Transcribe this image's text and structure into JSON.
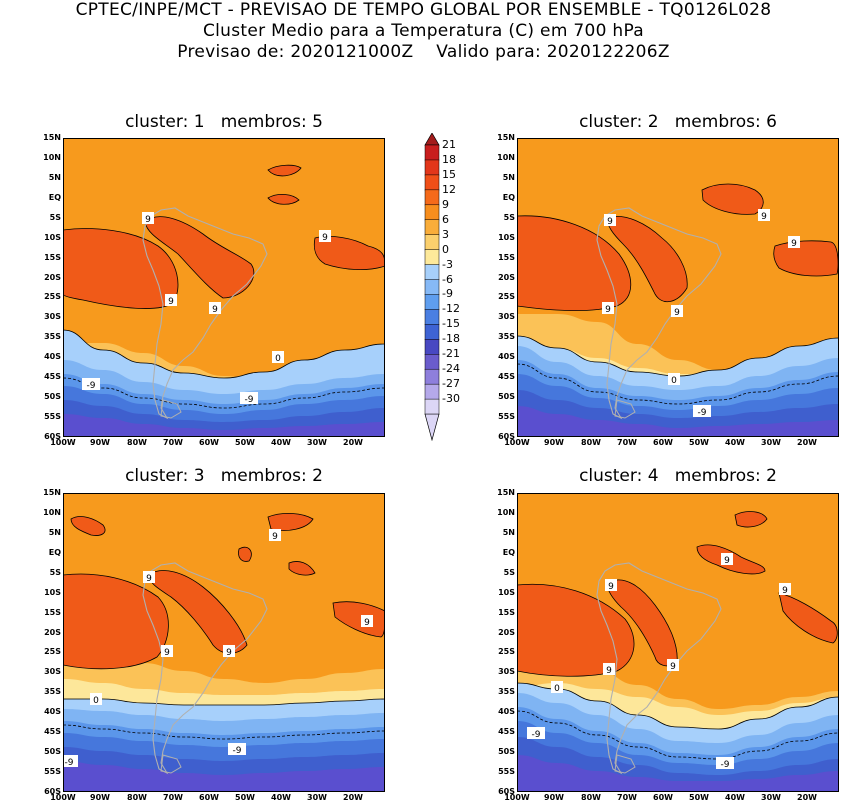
{
  "header": {
    "line1": "CPTEC/INPE/MCT - PREVISAO DE TEMPO GLOBAL POR ENSEMBLE - TQ0126L028",
    "line2": "Cluster Medio para a Temperatura (C) em 700 hPa",
    "line3": "Previsao de: 2020121000Z    Valido para: 2020122206Z"
  },
  "panels": [
    {
      "title": "cluster: 1   membros: 5"
    },
    {
      "title": "cluster: 2   membros: 6"
    },
    {
      "title": "cluster: 3   membros: 2"
    },
    {
      "title": "cluster: 4   membros: 2"
    }
  ],
  "lat_ticks": [
    "15N",
    "10N",
    "5N",
    "EQ",
    "5S",
    "10S",
    "15S",
    "20S",
    "25S",
    "30S",
    "35S",
    "40S",
    "45S",
    "50S",
    "55S",
    "60S"
  ],
  "lon_ticks": [
    "100W",
    "90W",
    "80W",
    "70W",
    "60W",
    "50W",
    "40W",
    "30W",
    "20W"
  ],
  "contour_labels": {
    "warm": "9",
    "zero": "0",
    "cold": "-9"
  },
  "colorbar": {
    "labels": [
      "21",
      "18",
      "15",
      "12",
      "9",
      "6",
      "3",
      "0",
      "-3",
      "-6",
      "-9",
      "-12",
      "-15",
      "-18",
      "-21",
      "-24",
      "-27",
      "-30"
    ],
    "colors": [
      "#a31c1c",
      "#c81e1e",
      "#e2361a",
      "#f04f18",
      "#f56a1a",
      "#f78e1d",
      "#f9ad3a",
      "#fbd06d",
      "#fde99a",
      "#a7d0fb",
      "#86b9f6",
      "#5f9eef",
      "#4a7fe2",
      "#3e63d4",
      "#4848c2",
      "#6a5ccc",
      "#8e7fdc",
      "#b5a9ea",
      "#dcd6f6"
    ]
  },
  "colors": {
    "hot": "#f05a18",
    "warm": "#f79a1d",
    "mild": "#fbc257",
    "pale": "#fde79a",
    "cool1": "#a7d0fb",
    "cool2": "#7fb4f3",
    "cool3": "#5b96ea",
    "cool4": "#4677dc",
    "cool5": "#3f5fce",
    "cold": "#5a4fcf",
    "land": "#b0b0b0"
  }
}
